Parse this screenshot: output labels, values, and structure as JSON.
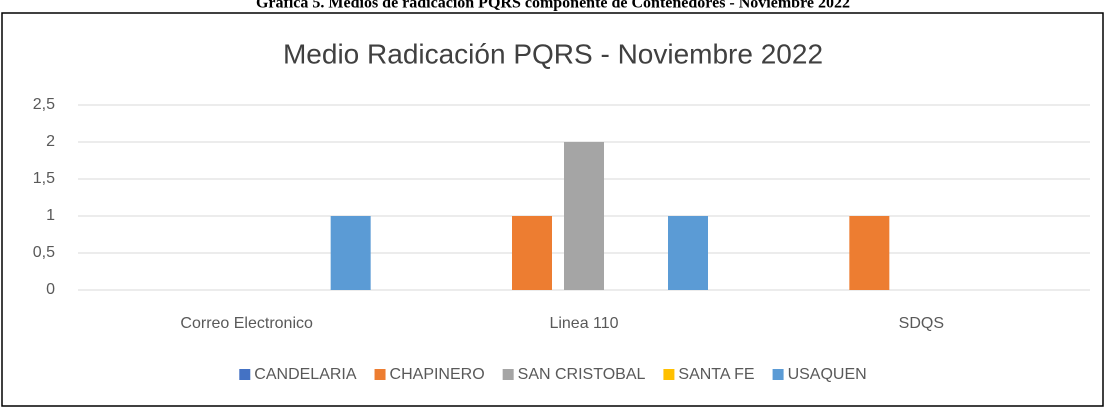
{
  "caption": "Gráfica 5. Medios de radicación PQRS componente de Contenedores - Noviembre 2022",
  "chart_data": {
    "type": "bar",
    "title": "Medio Radicación PQRS - Noviembre 2022",
    "categories": [
      "Correo Electronico",
      "Linea 110",
      "SDQS"
    ],
    "series": [
      {
        "name": "CANDELARIA",
        "color": "#4472c4",
        "values": [
          0,
          0,
          0
        ]
      },
      {
        "name": "CHAPINERO",
        "color": "#ed7d31",
        "values": [
          0,
          1,
          1
        ]
      },
      {
        "name": "SAN CRISTOBAL",
        "color": "#a5a5a5",
        "values": [
          0,
          2,
          0
        ]
      },
      {
        "name": "SANTA FE",
        "color": "#ffc000",
        "values": [
          0,
          0,
          0
        ]
      },
      {
        "name": "USAQUEN",
        "color": "#5b9bd5",
        "values": [
          1,
          1,
          0
        ]
      }
    ],
    "ylim": [
      0,
      2.5
    ],
    "yticks": [
      0,
      {
        "value": 0.5,
        "label": "0,5"
      },
      1,
      {
        "value": 1.5,
        "label": "1,5"
      },
      2,
      {
        "value": 2.5,
        "label": "2,5"
      }
    ],
    "grid": true,
    "legend": "bottom"
  }
}
